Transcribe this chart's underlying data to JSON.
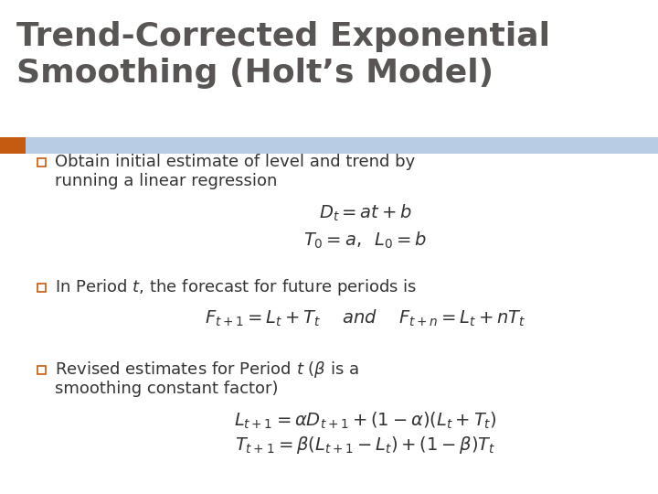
{
  "title_line1": "Trend-Corrected Exponential",
  "title_line2": "Smoothing (Holt’s Model)",
  "title_color": "#5a5555",
  "title_bg_color": "#ffffff",
  "blue_bar_color": "#b8cce4",
  "orange_bar_color": "#c55a11",
  "background_color": "#ffffff",
  "bullet_color": "#c55a11",
  "text_color": "#333333",
  "bullet1_line1": "Obtain initial estimate of level and trend by",
  "bullet1_line2": "running a linear regression",
  "eq1": "$D_t = at + b$",
  "eq2": "$T_0 = a, \\;\\; L_0 = b$",
  "bullet2": "In Period $t$, the forecast for future periods is",
  "eq3": "$F_{t+1} = L_t + T_t \\quad$ and $\\quad F_{t+n} = L_t + nT_t$",
  "bullet3_line1": "Revised estimates for Period $t$ ($\\beta$ is a",
  "bullet3_line2": "smoothing constant factor)",
  "eq4": "$L_{t+1} = \\alpha D_{t+1} + (1 - \\alpha)(L_t + T_t)$",
  "eq5": "$T_{t+1} = \\beta(L_{t+1} - L_t) + (1 - \\beta)T_t$",
  "title_fontsize": 26,
  "body_fontsize": 13,
  "eq_fontsize": 14
}
